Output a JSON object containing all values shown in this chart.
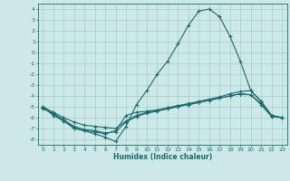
{
  "xlabel": "Humidex (Indice chaleur)",
  "background_color": "#cce8e8",
  "grid_color": "#aacccc",
  "line_color": "#1a6b6b",
  "xlim": [
    -0.5,
    23.5
  ],
  "ylim": [
    -8.5,
    4.5
  ],
  "xticks": [
    0,
    1,
    2,
    3,
    4,
    5,
    6,
    7,
    8,
    9,
    10,
    11,
    12,
    13,
    14,
    15,
    16,
    17,
    18,
    19,
    20,
    21,
    22,
    23
  ],
  "yticks": [
    -8,
    -7,
    -6,
    -5,
    -4,
    -3,
    -2,
    -1,
    0,
    1,
    2,
    3,
    4
  ],
  "line1_x": [
    0,
    1,
    2,
    3,
    4,
    5,
    6,
    7,
    8,
    9,
    10,
    11,
    12,
    13,
    14,
    15,
    16,
    17,
    18,
    19,
    20,
    21,
    22,
    23
  ],
  "line1_y": [
    -5.0,
    -5.8,
    -6.3,
    -6.9,
    -7.2,
    -7.5,
    -7.8,
    -8.2,
    -6.8,
    -4.8,
    -3.5,
    -2.0,
    -0.8,
    0.8,
    2.5,
    3.8,
    4.0,
    3.3,
    1.5,
    -0.8,
    -3.5,
    -4.5,
    -5.8,
    -6.0
  ],
  "line2_x": [
    0,
    1,
    2,
    3,
    4,
    5,
    6,
    7,
    8,
    9,
    10,
    11,
    12,
    13,
    14,
    15,
    16,
    17,
    18,
    19,
    20,
    21,
    22,
    23
  ],
  "line2_y": [
    -5.0,
    -5.5,
    -6.0,
    -6.4,
    -6.7,
    -6.8,
    -6.9,
    -7.0,
    -6.3,
    -5.8,
    -5.5,
    -5.3,
    -5.1,
    -4.9,
    -4.7,
    -4.5,
    -4.3,
    -4.1,
    -3.8,
    -3.6,
    -3.5,
    -4.5,
    -5.8,
    -6.0
  ],
  "line3_x": [
    0,
    1,
    2,
    3,
    4,
    5,
    6,
    7,
    8,
    9,
    10,
    11,
    12,
    13,
    14,
    15,
    16,
    17,
    18,
    19,
    20,
    21,
    22,
    23
  ],
  "line3_y": [
    -5.2,
    -5.6,
    -6.2,
    -6.8,
    -7.1,
    -7.2,
    -7.4,
    -7.3,
    -6.4,
    -5.9,
    -5.6,
    -5.4,
    -5.2,
    -5.0,
    -4.8,
    -4.6,
    -4.4,
    -4.2,
    -4.0,
    -3.8,
    -3.9,
    -4.8,
    -5.9,
    -6.0
  ],
  "line4_x": [
    0,
    1,
    2,
    3,
    4,
    5,
    6,
    7,
    8,
    9,
    10,
    11,
    12,
    13,
    14,
    15,
    16,
    17,
    18,
    19,
    20,
    21,
    22,
    23
  ],
  "line4_y": [
    -5.1,
    -5.7,
    -6.3,
    -7.0,
    -7.2,
    -7.3,
    -7.5,
    -7.2,
    -5.8,
    -5.5,
    -5.4,
    -5.3,
    -5.1,
    -4.9,
    -4.8,
    -4.6,
    -4.4,
    -4.2,
    -4.0,
    -3.8,
    -3.9,
    -4.7,
    -5.8,
    -6.0
  ]
}
